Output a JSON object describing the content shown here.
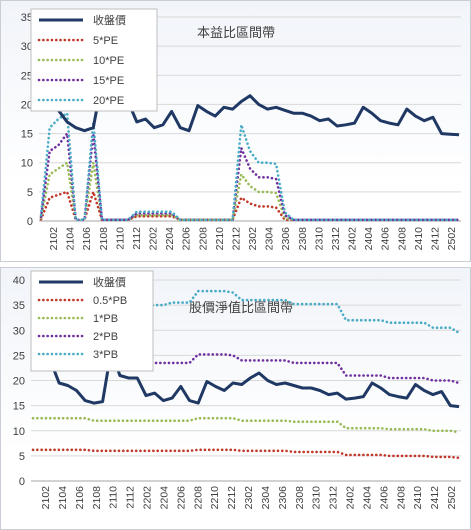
{
  "chart_data": [
    {
      "type": "line",
      "title": "本益比區間帶",
      "ylim": [
        0,
        35
      ],
      "yticks": [
        0,
        5,
        10,
        15,
        20,
        25,
        30,
        35
      ],
      "xtick_labels": [
        "2102",
        "2104",
        "2106",
        "2108",
        "2110",
        "2112",
        "2202",
        "2204",
        "2206",
        "2208",
        "2210",
        "2212",
        "2302",
        "2304",
        "2306",
        "2308",
        "2310",
        "2312",
        "2402",
        "2404",
        "2406",
        "2408",
        "2410",
        "2412",
        "2502"
      ],
      "legend_placement": "top-left",
      "grid": "horizontal",
      "series": [
        {
          "name": "收盤價",
          "color": "#1f3864",
          "style": "solid",
          "values": [
            19.5,
            20.0,
            19.0,
            17.0,
            16.0,
            15.5,
            16.0,
            24.0,
            21.5,
            20.5,
            20.5,
            17.0,
            17.5,
            16.0,
            16.5,
            18.8,
            16.0,
            15.5,
            19.8,
            18.8,
            18.0,
            19.5,
            19.2,
            20.5,
            21.5,
            20.0,
            19.2,
            19.5,
            19.0,
            18.5,
            18.5,
            18.0,
            17.2,
            17.5,
            16.3,
            16.5,
            16.8,
            19.5,
            18.5,
            17.2,
            16.8,
            16.5,
            19.2,
            18.0,
            17.2,
            17.8,
            15.0,
            14.9,
            14.8
          ]
        },
        {
          "name": "5*PE",
          "color": "#c0392b",
          "style": "dotted",
          "values": [
            0.3,
            4.0,
            4.5,
            5.0,
            0.2,
            0.2,
            5.0,
            0.2,
            0.2,
            0.2,
            0.2,
            0.8,
            0.8,
            0.8,
            0.8,
            0.8,
            0.2,
            0.2,
            0.2,
            0.2,
            0.2,
            0.2,
            0.2,
            4.0,
            3.0,
            2.5,
            2.5,
            2.3,
            0.2,
            0.2,
            0.2,
            0.2,
            0.2,
            0.2,
            0.2,
            0.2,
            0.2,
            0.2,
            0.2,
            0.2,
            0.2,
            0.2,
            0.2,
            0.2,
            0.2,
            0.2,
            0.2,
            0.2,
            0.2
          ]
        },
        {
          "name": "10*PE",
          "color": "#9bbb59",
          "style": "dotted",
          "values": [
            0.5,
            8.0,
            9.0,
            10.0,
            0.2,
            0.2,
            10.0,
            0.2,
            0.2,
            0.2,
            0.2,
            1.0,
            1.0,
            1.0,
            1.0,
            1.0,
            0.2,
            0.2,
            0.2,
            0.2,
            0.2,
            0.2,
            0.2,
            8.0,
            6.0,
            5.0,
            5.0,
            4.8,
            0.5,
            0.2,
            0.2,
            0.2,
            0.2,
            0.2,
            0.2,
            0.2,
            0.2,
            0.2,
            0.2,
            0.2,
            0.2,
            0.2,
            0.2,
            0.2,
            0.2,
            0.2,
            0.2,
            0.2,
            0.2
          ]
        },
        {
          "name": "15*PE",
          "color": "#7030a0",
          "style": "dotted",
          "values": [
            0.7,
            12.0,
            13.0,
            15.0,
            0.2,
            0.2,
            15.0,
            0.2,
            0.2,
            0.2,
            0.2,
            1.3,
            1.3,
            1.3,
            1.3,
            1.3,
            0.2,
            0.2,
            0.2,
            0.2,
            0.2,
            0.2,
            0.2,
            12.5,
            9.0,
            7.5,
            7.5,
            7.2,
            1.0,
            0.2,
            0.2,
            0.2,
            0.2,
            0.2,
            0.2,
            0.2,
            0.2,
            0.2,
            0.2,
            0.2,
            0.2,
            0.2,
            0.2,
            0.2,
            0.2,
            0.2,
            0.2,
            0.2,
            0.2
          ]
        },
        {
          "name": "20*PE",
          "color": "#4bacc6",
          "style": "dotted",
          "values": [
            1.0,
            16.0,
            17.5,
            18.5,
            0.2,
            0.2,
            17.0,
            0.2,
            0.2,
            0.2,
            0.2,
            1.6,
            1.6,
            1.6,
            1.6,
            1.6,
            0.2,
            0.2,
            0.2,
            0.2,
            0.2,
            0.2,
            0.2,
            16.5,
            12.0,
            10.0,
            10.0,
            9.8,
            1.5,
            0.2,
            0.2,
            0.2,
            0.2,
            0.2,
            0.2,
            0.2,
            0.2,
            0.2,
            0.2,
            0.2,
            0.2,
            0.2,
            0.2,
            0.2,
            0.2,
            0.2,
            0.2,
            0.2,
            0.2
          ]
        }
      ]
    },
    {
      "type": "line",
      "title": "股價淨值比區間帶",
      "ylim": [
        0,
        40
      ],
      "yticks": [
        0,
        5,
        10,
        15,
        20,
        25,
        30,
        35,
        40
      ],
      "xtick_labels": [
        "2102",
        "2104",
        "2106",
        "2108",
        "2110",
        "2112",
        "2202",
        "2204",
        "2206",
        "2208",
        "2210",
        "2212",
        "2302",
        "2304",
        "2306",
        "2308",
        "2310",
        "2312",
        "2402",
        "2404",
        "2406",
        "2408",
        "2410",
        "2412",
        "2502"
      ],
      "legend_placement": "top-left",
      "grid": "horizontal",
      "series": [
        {
          "name": "收盤價",
          "color": "#1f3864",
          "style": "solid",
          "values": [
            22.5,
            22.5,
            24.0,
            19.5,
            19.0,
            18.0,
            16.0,
            15.5,
            15.8,
            26.0,
            21.0,
            20.5,
            20.5,
            17.0,
            17.5,
            16.0,
            16.5,
            18.8,
            16.0,
            15.5,
            19.8,
            18.8,
            18.0,
            19.5,
            19.2,
            20.5,
            21.5,
            20.0,
            19.2,
            19.5,
            19.0,
            18.5,
            18.5,
            18.0,
            17.2,
            17.5,
            16.3,
            16.5,
            16.8,
            19.5,
            18.5,
            17.2,
            16.8,
            16.5,
            19.2,
            18.0,
            17.2,
            17.8,
            15.0,
            14.8
          ]
        },
        {
          "name": "0.5*PB",
          "color": "#c0392b",
          "style": "dotted",
          "values": [
            6.2,
            6.2,
            6.2,
            6.2,
            6.2,
            6.2,
            6.2,
            6.0,
            6.0,
            6.0,
            6.0,
            6.0,
            6.0,
            6.0,
            6.0,
            6.0,
            6.0,
            6.0,
            6.0,
            6.2,
            6.2,
            6.2,
            6.2,
            6.2,
            6.0,
            6.0,
            6.0,
            6.0,
            6.0,
            6.0,
            5.8,
            5.8,
            5.8,
            5.8,
            5.8,
            5.8,
            5.2,
            5.2,
            5.2,
            5.2,
            5.2,
            5.0,
            5.0,
            5.0,
            5.0,
            5.0,
            4.8,
            4.8,
            4.8,
            4.6
          ]
        },
        {
          "name": "1*PB",
          "color": "#9bbb59",
          "style": "dotted",
          "values": [
            12.5,
            12.5,
            12.5,
            12.5,
            12.5,
            12.5,
            12.5,
            12.0,
            12.0,
            12.0,
            12.0,
            12.0,
            12.0,
            12.0,
            12.0,
            12.0,
            12.0,
            12.0,
            12.0,
            12.5,
            12.5,
            12.5,
            12.5,
            12.5,
            12.0,
            12.0,
            12.0,
            12.0,
            12.0,
            12.0,
            11.8,
            11.8,
            11.8,
            11.8,
            11.8,
            11.8,
            10.5,
            10.5,
            10.5,
            10.5,
            10.5,
            10.3,
            10.3,
            10.3,
            10.3,
            10.3,
            10.0,
            10.0,
            10.0,
            9.7
          ]
        },
        {
          "name": "2*PB",
          "color": "#7030a0",
          "style": "dotted",
          "values": [
            25.0,
            25.0,
            25.0,
            25.0,
            25.0,
            25.0,
            25.0,
            24.0,
            24.0,
            24.0,
            24.0,
            23.5,
            23.5,
            23.5,
            23.5,
            23.5,
            23.5,
            23.5,
            23.5,
            25.2,
            25.2,
            25.2,
            25.2,
            25.0,
            24.0,
            24.0,
            24.0,
            24.0,
            24.0,
            24.0,
            23.5,
            23.5,
            23.5,
            23.5,
            23.5,
            23.5,
            21.0,
            21.0,
            21.0,
            21.0,
            21.0,
            20.5,
            20.5,
            20.5,
            20.5,
            20.5,
            20.0,
            20.0,
            20.0,
            19.5
          ]
        },
        {
          "name": "3*PB",
          "color": "#4bacc6",
          "style": "dotted",
          "values": [
            37.5,
            37.5,
            37.5,
            37.5,
            37.5,
            37.5,
            37.5,
            35.5,
            35.5,
            35.5,
            35.5,
            35.0,
            35.0,
            35.0,
            35.0,
            35.0,
            35.5,
            35.5,
            35.5,
            37.8,
            37.8,
            37.8,
            37.8,
            37.5,
            36.0,
            36.0,
            36.0,
            36.0,
            36.0,
            36.0,
            35.2,
            35.2,
            35.2,
            35.2,
            35.2,
            35.2,
            32.0,
            32.0,
            32.0,
            32.0,
            32.0,
            31.5,
            31.5,
            31.5,
            31.5,
            31.5,
            30.5,
            30.5,
            30.5,
            29.5
          ]
        }
      ]
    }
  ]
}
